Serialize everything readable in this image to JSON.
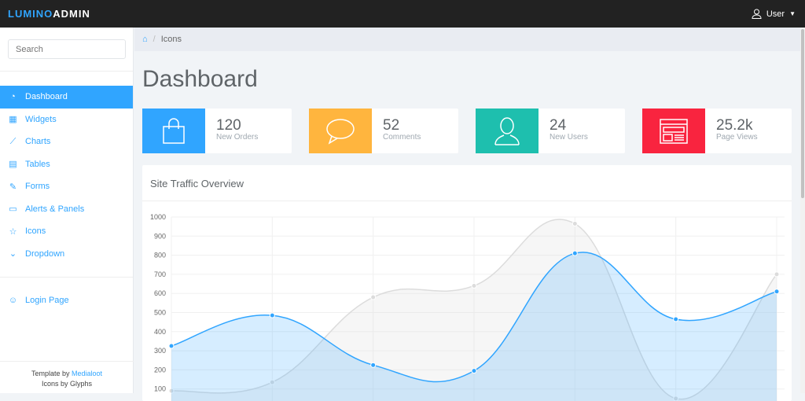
{
  "brand": {
    "part1": "LUMINO",
    "part2": "ADMIN"
  },
  "user": {
    "label": "User"
  },
  "sidebar": {
    "search_placeholder": "Search",
    "items": [
      {
        "label": "Dashboard",
        "icon": "dashboard-icon",
        "active": true
      },
      {
        "label": "Widgets",
        "icon": "calendar-icon"
      },
      {
        "label": "Charts",
        "icon": "line-chart-icon"
      },
      {
        "label": "Tables",
        "icon": "table-icon"
      },
      {
        "label": "Forms",
        "icon": "pencil-icon"
      },
      {
        "label": "Alerts & Panels",
        "icon": "panel-icon"
      },
      {
        "label": "Icons",
        "icon": "star-icon"
      },
      {
        "label": "Dropdown",
        "icon": "chevron-circle-icon"
      }
    ],
    "login": {
      "label": "Login Page",
      "icon": "user-icon"
    },
    "footer": {
      "template_prefix": "Template by ",
      "template_link": "Medialoot",
      "icons_credit": "Icons by Glyphs"
    }
  },
  "breadcrumb": {
    "current": "Icons"
  },
  "page_title": "Dashboard",
  "stats": [
    {
      "value": "120",
      "label": "New Orders",
      "color": "#30a5ff",
      "icon": "shopping-bag-icon"
    },
    {
      "value": "52",
      "label": "Comments",
      "color": "#ffb53e",
      "icon": "comment-icon"
    },
    {
      "value": "24",
      "label": "New Users",
      "color": "#1ebfae",
      "icon": "user-icon"
    },
    {
      "value": "25.2k",
      "label": "Page Views",
      "color": "#f9243f",
      "icon": "browser-window-icon"
    }
  ],
  "panel": {
    "title": "Site Traffic Overview"
  },
  "chart_data": {
    "type": "area",
    "ylim": [
      0,
      1000
    ],
    "yticks": [
      "100",
      "200",
      "300",
      "400",
      "500",
      "600",
      "700",
      "800",
      "900",
      "1000"
    ],
    "grid": true,
    "series": [
      {
        "values": [
          90,
          135,
          580,
          640,
          965,
          50,
          700
        ],
        "color": "#dcdcdc"
      },
      {
        "values": [
          325,
          485,
          225,
          195,
          810,
          465,
          610
        ],
        "color": "#30a5ff"
      }
    ]
  }
}
